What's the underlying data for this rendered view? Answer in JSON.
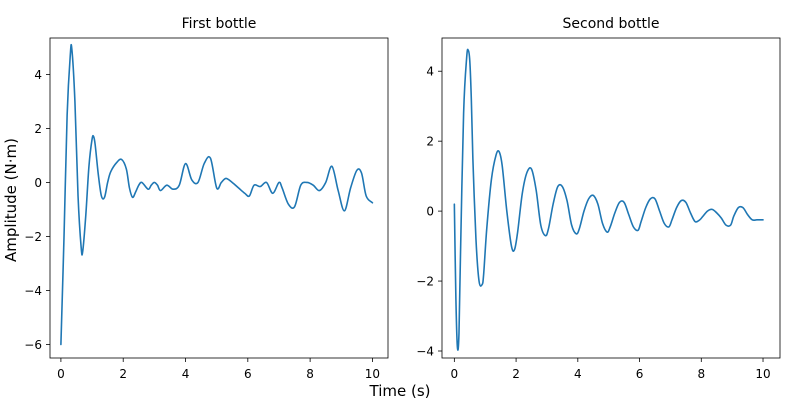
{
  "figure": {
    "xlabel": "Time (s)",
    "ylabel": "Amplitude (N·m)"
  },
  "chart_data": [
    {
      "type": "line",
      "title": "First bottle",
      "xlabel": "Time (s)",
      "ylabel": "Amplitude (N·m)",
      "xlim": [
        -0.35,
        10.5
      ],
      "ylim": [
        -6.5,
        5.35
      ],
      "xticks": [
        0,
        2,
        4,
        6,
        8,
        10
      ],
      "xtick_labels": [
        "0",
        "2",
        "4",
        "6",
        "8",
        "10"
      ],
      "yticks": [
        -6,
        -4,
        -2,
        0,
        2,
        4
      ],
      "ytick_labels": [
        "−6",
        "−4",
        "−2",
        "0",
        "2",
        "4"
      ],
      "grid": false,
      "legend": "none",
      "color": "#1f77b4",
      "series": [
        {
          "x": [
            0,
            0.1,
            0.2,
            0.3,
            0.35,
            0.45,
            0.55,
            0.65,
            0.7,
            0.8,
            0.9,
            1.0,
            1.05,
            1.1,
            1.2,
            1.3,
            1.4,
            1.5,
            1.6,
            1.8,
            1.95,
            2.1,
            2.2,
            2.3,
            2.4,
            2.5,
            2.6,
            2.8,
            2.9,
            3.0,
            3.1,
            3.2,
            3.4,
            3.6,
            3.8,
            4.0,
            4.2,
            4.4,
            4.6,
            4.8,
            5.0,
            5.15,
            5.3,
            5.5,
            5.7,
            5.9,
            6.05,
            6.2,
            6.4,
            6.6,
            6.8,
            7.0,
            7.1,
            7.3,
            7.5,
            7.7,
            7.9,
            8.1,
            8.3,
            8.5,
            8.7,
            8.9,
            9.1,
            9.3,
            9.5,
            9.65,
            9.8,
            10.0
          ],
          "y": [
            -6.0,
            -2.0,
            2.5,
            4.7,
            4.95,
            3.0,
            -0.5,
            -2.4,
            -2.55,
            -1.2,
            0.6,
            1.6,
            1.7,
            1.4,
            0.3,
            -0.5,
            -0.55,
            0.0,
            0.4,
            0.75,
            0.85,
            0.5,
            -0.2,
            -0.55,
            -0.35,
            -0.1,
            0.0,
            -0.25,
            -0.1,
            0.0,
            -0.1,
            -0.3,
            -0.1,
            -0.25,
            -0.1,
            0.7,
            0.1,
            0.0,
            0.7,
            0.9,
            -0.2,
            0.0,
            0.15,
            0.0,
            -0.2,
            -0.4,
            -0.5,
            -0.1,
            -0.15,
            0.0,
            -0.4,
            0.0,
            -0.2,
            -0.8,
            -0.9,
            -0.1,
            0.0,
            -0.1,
            -0.3,
            0.0,
            0.6,
            -0.3,
            -1.05,
            -0.2,
            0.45,
            0.35,
            -0.5,
            -0.75
          ]
        }
      ]
    },
    {
      "type": "line",
      "title": "Second bottle",
      "xlabel": "Time (s)",
      "ylabel": "",
      "xlim": [
        -0.4,
        10.55
      ],
      "ylim": [
        -4.2,
        4.95
      ],
      "xticks": [
        0,
        2,
        4,
        6,
        8,
        10
      ],
      "xtick_labels": [
        "0",
        "2",
        "4",
        "6",
        "8",
        "10"
      ],
      "yticks": [
        -4,
        -2,
        0,
        2,
        4
      ],
      "ytick_labels": [
        "−4",
        "−2",
        "0",
        "2",
        "4"
      ],
      "grid": false,
      "legend": "none",
      "color": "#1f77b4",
      "series": [
        {
          "x": [
            0,
            0.05,
            0.1,
            0.15,
            0.2,
            0.3,
            0.4,
            0.45,
            0.5,
            0.55,
            0.6,
            0.7,
            0.8,
            0.9,
            0.95,
            1.05,
            1.2,
            1.35,
            1.45,
            1.55,
            1.7,
            1.85,
            1.95,
            2.05,
            2.2,
            2.35,
            2.5,
            2.65,
            2.8,
            2.95,
            3.05,
            3.2,
            3.35,
            3.5,
            3.65,
            3.8,
            3.95,
            4.05,
            4.2,
            4.35,
            4.5,
            4.65,
            4.8,
            4.95,
            5.05,
            5.2,
            5.35,
            5.5,
            5.65,
            5.8,
            5.95,
            6.05,
            6.2,
            6.35,
            6.5,
            6.65,
            6.8,
            6.95,
            7.05,
            7.2,
            7.35,
            7.5,
            7.65,
            7.8,
            7.95,
            8.05,
            8.2,
            8.35,
            8.5,
            8.65,
            8.8,
            8.95,
            9.05,
            9.2,
            9.35,
            9.5,
            9.65,
            9.8,
            9.95,
            10.0
          ],
          "y": [
            0.2,
            -2.5,
            -3.9,
            -3.5,
            -1.2,
            2.8,
            4.4,
            4.6,
            4.3,
            3.2,
            1.5,
            -0.8,
            -2.0,
            -2.1,
            -1.8,
            -0.5,
            0.9,
            1.6,
            1.7,
            1.3,
            0.0,
            -1.0,
            -1.1,
            -0.6,
            0.5,
            1.1,
            1.2,
            0.6,
            -0.4,
            -0.7,
            -0.5,
            0.2,
            0.7,
            0.7,
            0.3,
            -0.4,
            -0.65,
            -0.5,
            0.0,
            0.35,
            0.45,
            0.2,
            -0.35,
            -0.6,
            -0.45,
            -0.05,
            0.25,
            0.25,
            -0.1,
            -0.45,
            -0.55,
            -0.3,
            0.1,
            0.35,
            0.35,
            0.0,
            -0.35,
            -0.45,
            -0.25,
            0.1,
            0.3,
            0.25,
            -0.05,
            -0.3,
            -0.25,
            -0.15,
            0.0,
            0.05,
            -0.05,
            -0.2,
            -0.4,
            -0.4,
            -0.15,
            0.1,
            0.1,
            -0.1,
            -0.25,
            -0.25,
            -0.25,
            -0.25
          ]
        }
      ]
    }
  ]
}
